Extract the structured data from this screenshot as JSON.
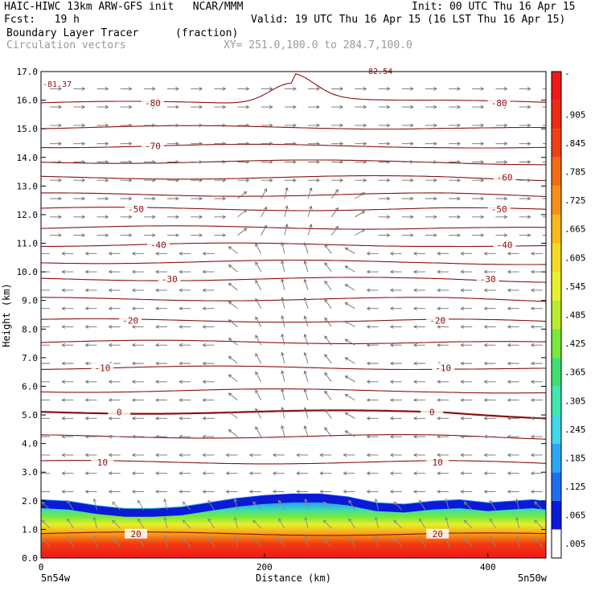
{
  "header": {
    "line1_left": "HAIC-HIWC 13km ARW-GFS init   NCAR/MMM",
    "line1_right": "Init: 00 UTC Thu 16 Apr 15",
    "line2_left": "Fcst:   19 h",
    "line2_right": "Valid: 19 UTC Thu 16 Apr 15 (16 LST Thu 16 Apr 15)",
    "field_name": "Boundary Layer Tracer",
    "field_units": "(fraction)",
    "overlay_name": "Circulation vectors",
    "xy_range": "XY= 251.0,100.0 to 284.7,100.0"
  },
  "chart_data": {
    "type": "heatmap",
    "xlabel": "Distance (km)",
    "ylabel": "Height (km)",
    "xlim": [
      0,
      452
    ],
    "ylim": [
      0,
      17
    ],
    "x_ticks": [
      "0",
      "200",
      "400"
    ],
    "x_tick_values": [
      0,
      200,
      400
    ],
    "y_ticks": [
      "0.0",
      "1.0",
      "2.0",
      "3.0",
      "4.0",
      "5.0",
      "6.0",
      "7.0",
      "8.0",
      "9.0",
      "10.0",
      "11.0",
      "12.0",
      "13.0",
      "14.0",
      "15.0",
      "16.0",
      "17.0"
    ],
    "x_end_labels": {
      "left": "5n54w",
      "right": "5n50w"
    },
    "colorbar": {
      "labels": [
        ".005",
        ".065",
        ".125",
        ".185",
        ".245",
        ".305",
        ".365",
        ".425",
        ".485",
        ".545",
        ".605",
        ".665",
        ".725",
        ".785",
        ".845",
        ".905",
        "-"
      ],
      "colors": [
        "#ffffff",
        "#0a1ad6",
        "#1e6ef2",
        "#2aa8f5",
        "#3fd8e8",
        "#3fe8b0",
        "#3fe070",
        "#7ae83a",
        "#b8ec2e",
        "#e8f02a",
        "#f5d820",
        "#f8b81a",
        "#f89018",
        "#f56a14",
        "#f04012",
        "#ee2a12",
        "#f01818"
      ]
    },
    "tracer_layer": {
      "top_height_km": [
        2.05,
        2.0,
        1.85,
        1.75,
        1.75,
        1.8,
        1.95,
        2.1,
        2.2,
        2.25,
        2.25,
        2.15,
        1.95,
        1.9,
        2.0,
        2.05,
        1.95,
        2.0,
        2.05,
        2.0
      ],
      "top_x_km": [
        0,
        25,
        50,
        75,
        100,
        125,
        150,
        175,
        200,
        225,
        250,
        275,
        300,
        325,
        350,
        375,
        400,
        420,
        440,
        452
      ]
    },
    "contours": {
      "name": "Temperature",
      "levels": [
        {
          "value": "20",
          "height_km": 0.85,
          "labels_at_km": [
            85,
            355
          ],
          "label": "20"
        },
        {
          "value": "10",
          "height_km": 3.35,
          "labels_at_km": [
            55,
            355
          ],
          "label": "10"
        },
        {
          "value": "5",
          "height_km": 4.25,
          "labels_at_km": [],
          "label": ""
        },
        {
          "value": "0",
          "height_km": 5.1,
          "labels_at_km": [
            70,
            350
          ],
          "label": "0",
          "bold": true
        },
        {
          "value": "-5",
          "height_km": 5.85,
          "labels_at_km": [],
          "label": ""
        },
        {
          "value": "-10",
          "height_km": 6.65,
          "labels_at_km": [
            55,
            360
          ],
          "label": "-10"
        },
        {
          "value": "-15",
          "height_km": 7.55,
          "labels_at_km": [],
          "label": ""
        },
        {
          "value": "-20",
          "height_km": 8.3,
          "labels_at_km": [
            80,
            355
          ],
          "label": "-20"
        },
        {
          "value": "-25",
          "height_km": 9.05,
          "labels_at_km": [],
          "label": ""
        },
        {
          "value": "-30",
          "height_km": 9.75,
          "labels_at_km": [
            115,
            400
          ],
          "label": "-30"
        },
        {
          "value": "-35",
          "height_km": 10.35,
          "labels_at_km": [],
          "label": ""
        },
        {
          "value": "-40",
          "height_km": 10.95,
          "labels_at_km": [
            105,
            415
          ],
          "label": "-40"
        },
        {
          "value": "-45",
          "height_km": 11.55,
          "labels_at_km": [],
          "label": ""
        },
        {
          "value": "-50",
          "height_km": 12.2,
          "labels_at_km": [
            85,
            410
          ],
          "label": "-50"
        },
        {
          "value": "-55",
          "height_km": 12.7,
          "labels_at_km": [],
          "label": ""
        },
        {
          "value": "-60",
          "height_km": 13.3,
          "labels_at_km": [
            415
          ],
          "label": "-60"
        },
        {
          "value": "-65",
          "height_km": 13.85,
          "labels_at_km": [],
          "label": ""
        },
        {
          "value": "-70",
          "height_km": 14.4,
          "labels_at_km": [
            100
          ],
          "label": "-70"
        },
        {
          "value": "-75",
          "height_km": 15.05,
          "labels_at_km": [],
          "label": ""
        },
        {
          "value": "-80",
          "height_km": 15.9,
          "labels_at_km": [
            100,
            410
          ],
          "label": "-80",
          "bump": true
        }
      ],
      "corner_labels": {
        "top_left": "-81.37",
        "top_mid": "-82.54"
      }
    },
    "vectors": "circulation vectors (wind in cross-section plane)"
  }
}
